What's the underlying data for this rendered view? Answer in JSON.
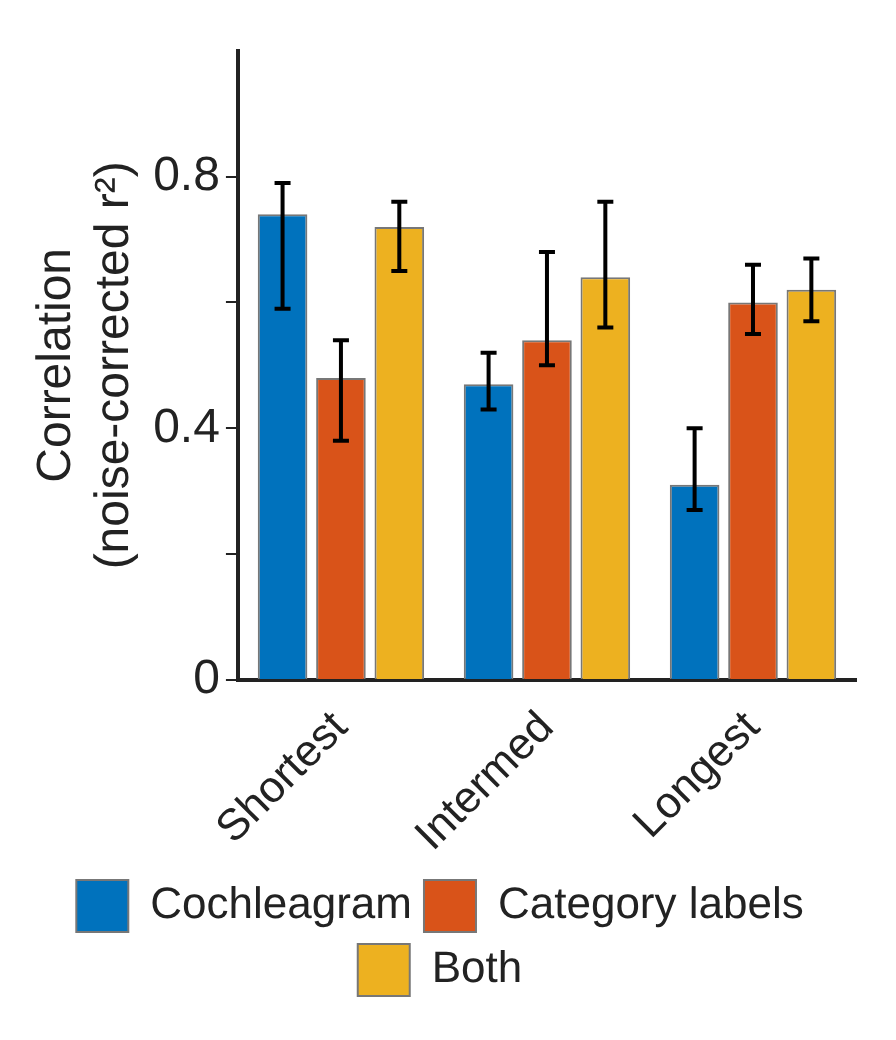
{
  "chart_data": {
    "type": "bar",
    "ylabel": "Correlation\n(noise-corrected r²)",
    "categories": [
      "Shortest",
      "Intermed",
      "Longest"
    ],
    "ylim": [
      0,
      1
    ],
    "yticks": [
      0,
      {
        "value": 0.2,
        "label": null
      },
      0.4,
      {
        "value": 0.6,
        "label": null
      },
      0.8
    ],
    "legend": "bottom",
    "grid": false,
    "series": [
      {
        "name": "Cochleagram",
        "color": "#0072bd",
        "values": [
          0.74,
          0.47,
          0.31
        ],
        "errors": [
          [
            0.59,
            0.79
          ],
          [
            0.43,
            0.52
          ],
          [
            0.27,
            0.4
          ]
        ]
      },
      {
        "name": "Category labels",
        "color": "#d95319",
        "values": [
          0.48,
          0.54,
          0.6
        ],
        "errors": [
          [
            0.38,
            0.54
          ],
          [
            0.5,
            0.68
          ],
          [
            0.55,
            0.66
          ]
        ]
      },
      {
        "name": "Both",
        "color": "#edb120",
        "values": [
          0.72,
          0.64,
          0.62
        ],
        "errors": [
          [
            0.65,
            0.76
          ],
          [
            0.56,
            0.76
          ],
          [
            0.57,
            0.67
          ]
        ]
      }
    ]
  }
}
